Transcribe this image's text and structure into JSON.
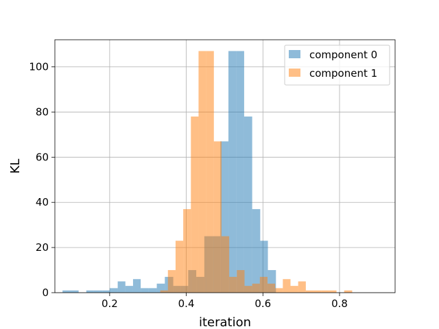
{
  "chart_data": {
    "type": "bar",
    "subtype": "histogram",
    "title": "",
    "xlabel": "iteration",
    "ylabel": "KL",
    "xlim": [
      0.057,
      0.945
    ],
    "ylim": [
      0,
      112
    ],
    "xticks": [
      0.2,
      0.4,
      0.6,
      0.8
    ],
    "yticks": [
      0,
      20,
      40,
      60,
      80,
      100
    ],
    "grid": true,
    "legend": "top-right",
    "bar_alpha": 0.5,
    "series": [
      {
        "name": "component 0",
        "color": "#1f77b4",
        "bins": [
          [
            0.077,
            0.119,
            1
          ],
          [
            0.139,
            0.158,
            1
          ],
          [
            0.158,
            0.181,
            1
          ],
          [
            0.181,
            0.2,
            1
          ],
          [
            0.2,
            0.221,
            2
          ],
          [
            0.221,
            0.241,
            5
          ],
          [
            0.241,
            0.261,
            3
          ],
          [
            0.261,
            0.281,
            6
          ],
          [
            0.281,
            0.302,
            2
          ],
          [
            0.302,
            0.323,
            2
          ],
          [
            0.323,
            0.344,
            4
          ],
          [
            0.344,
            0.366,
            7
          ],
          [
            0.366,
            0.386,
            3
          ],
          [
            0.386,
            0.405,
            3
          ],
          [
            0.405,
            0.426,
            10
          ],
          [
            0.426,
            0.447,
            7
          ],
          [
            0.447,
            0.468,
            25
          ],
          [
            0.468,
            0.489,
            25
          ],
          [
            0.489,
            0.51,
            67
          ],
          [
            0.51,
            0.531,
            107
          ],
          [
            0.531,
            0.551,
            107
          ],
          [
            0.551,
            0.572,
            78
          ],
          [
            0.572,
            0.593,
            37
          ],
          [
            0.593,
            0.613,
            23
          ],
          [
            0.613,
            0.634,
            10
          ]
        ]
      },
      {
        "name": "component 1",
        "color": "#ff7f0e",
        "bins": [
          [
            0.332,
            0.352,
            1
          ],
          [
            0.352,
            0.372,
            10
          ],
          [
            0.372,
            0.392,
            23
          ],
          [
            0.392,
            0.412,
            37
          ],
          [
            0.412,
            0.432,
            78
          ],
          [
            0.432,
            0.452,
            107
          ],
          [
            0.452,
            0.472,
            107
          ],
          [
            0.472,
            0.492,
            67
          ],
          [
            0.492,
            0.512,
            25
          ],
          [
            0.512,
            0.532,
            7
          ],
          [
            0.532,
            0.552,
            10
          ],
          [
            0.552,
            0.572,
            3
          ],
          [
            0.572,
            0.592,
            4
          ],
          [
            0.592,
            0.612,
            7
          ],
          [
            0.612,
            0.632,
            4
          ],
          [
            0.632,
            0.652,
            2
          ],
          [
            0.652,
            0.672,
            6
          ],
          [
            0.672,
            0.692,
            3
          ],
          [
            0.692,
            0.712,
            5
          ],
          [
            0.712,
            0.732,
            1
          ],
          [
            0.732,
            0.752,
            1
          ],
          [
            0.752,
            0.772,
            1
          ],
          [
            0.772,
            0.792,
            1
          ],
          [
            0.812,
            0.833,
            1
          ]
        ]
      }
    ]
  }
}
